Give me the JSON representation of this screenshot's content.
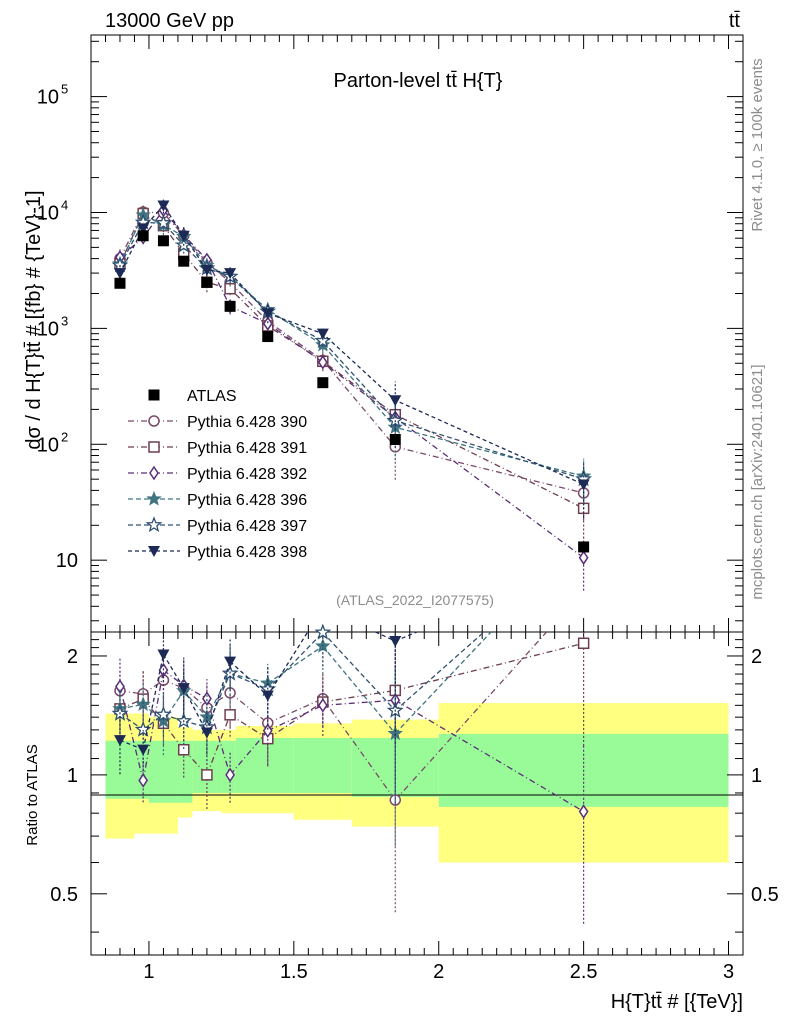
{
  "header": {
    "energy_label": "13000 GeV pp",
    "process_label": "tt̄"
  },
  "side_text": {
    "rivet": "Rivet 4.1.0, ≥ 100k events",
    "mcplots": "mcplots.cern.ch [arXiv:2401.10621]"
  },
  "chart_data": {
    "type": "scatter",
    "title": "Parton-level tt̄  H{T}",
    "analysis_id": "(ATLAS_2022_I2077575)",
    "xlabel": "H{T}tt̄ # [{TeV}]",
    "ylabel": "dσ / d H{T}tt̄ # [{fb} # {TeV}-1]",
    "ratio_ylabel": "Ratio to ATLAS",
    "xlim": [
      0.8,
      3.05
    ],
    "ylim": [
      2.4,
      340000
    ],
    "ratio_ylim": [
      0.35,
      2.3
    ],
    "log_y": true,
    "x_ticks": [
      "1",
      "1.5",
      "2",
      "2.5",
      "3"
    ],
    "y_ticks": [
      "10",
      "10^2",
      "10^3",
      "10^4",
      "10^5"
    ],
    "ratio_ticks": [
      "0.5",
      "1",
      "2"
    ],
    "x": [
      0.9,
      0.98,
      1.05,
      1.12,
      1.2,
      1.28,
      1.41,
      1.6,
      1.85,
      2.5
    ],
    "data": {
      "name": "ATLAS",
      "values": [
        2450,
        6300,
        5700,
        3800,
        2500,
        1550,
        850,
        340,
        110,
        13
      ],
      "bin_edges": [
        0.85,
        0.95,
        1.0,
        1.1,
        1.15,
        1.25,
        1.3,
        1.5,
        1.7,
        2.0,
        3.0
      ],
      "band_inner": [
        [
          0.87,
          1.22
        ],
        [
          0.87,
          1.22
        ],
        [
          0.85,
          1.22
        ],
        [
          0.85,
          1.22
        ],
        [
          0.9,
          1.22
        ],
        [
          0.9,
          1.22
        ],
        [
          0.9,
          1.24
        ],
        [
          0.9,
          1.24
        ],
        [
          0.88,
          1.24
        ],
        [
          0.83,
          1.27
        ]
      ],
      "band_outer": [
        [
          0.69,
          1.43
        ],
        [
          0.71,
          1.43
        ],
        [
          0.71,
          1.4
        ],
        [
          0.78,
          1.32
        ],
        [
          0.81,
          1.3
        ],
        [
          0.8,
          1.3
        ],
        [
          0.8,
          1.33
        ],
        [
          0.77,
          1.35
        ],
        [
          0.74,
          1.38
        ],
        [
          0.6,
          1.52
        ]
      ]
    },
    "series": [
      {
        "name": "Pythia 6.428 390",
        "marker": "circle-open",
        "color": "#7a4a6a",
        "dash": "6,3,1,3",
        "values": [
          4000,
          10100,
          9900,
          6300,
          3700,
          2500,
          1150,
          530,
          95,
          38
        ]
      },
      {
        "name": "Pythia 6.428 391",
        "marker": "square-open",
        "color": "#6e3e4e",
        "dash": "6,3,1,3",
        "values": [
          3600,
          9800,
          7700,
          4400,
          2500,
          2200,
          1050,
          520,
          180,
          28
        ]
      },
      {
        "name": "Pythia 6.428 392",
        "marker": "diamond-open",
        "color": "#5a2e7a",
        "dash": "6,3,1,3",
        "values": [
          4100,
          6100,
          10500,
          6400,
          3900,
          1550,
          1100,
          510,
          170,
          10.5
        ]
      },
      {
        "name": "Pythia 6.428 396",
        "marker": "star-filled",
        "color": "#3f7480",
        "dash": "5,3",
        "values": [
          3600,
          9500,
          7800,
          6200,
          3500,
          2800,
          1450,
          720,
          140,
          53
        ]
      },
      {
        "name": "Pythia 6.428 397",
        "marker": "star-open",
        "color": "#2e5070",
        "dash": "5,3",
        "values": [
          3500,
          8200,
          8100,
          5200,
          3300,
          2800,
          1400,
          780,
          160,
          50
        ]
      },
      {
        "name": "Pythia 6.428 398",
        "marker": "triangle-down-filled",
        "color": "#1c2a55",
        "dash": "4,3",
        "values": [
          3000,
          7300,
          11500,
          6300,
          3200,
          3000,
          1350,
          900,
          240,
          45
        ]
      }
    ]
  }
}
